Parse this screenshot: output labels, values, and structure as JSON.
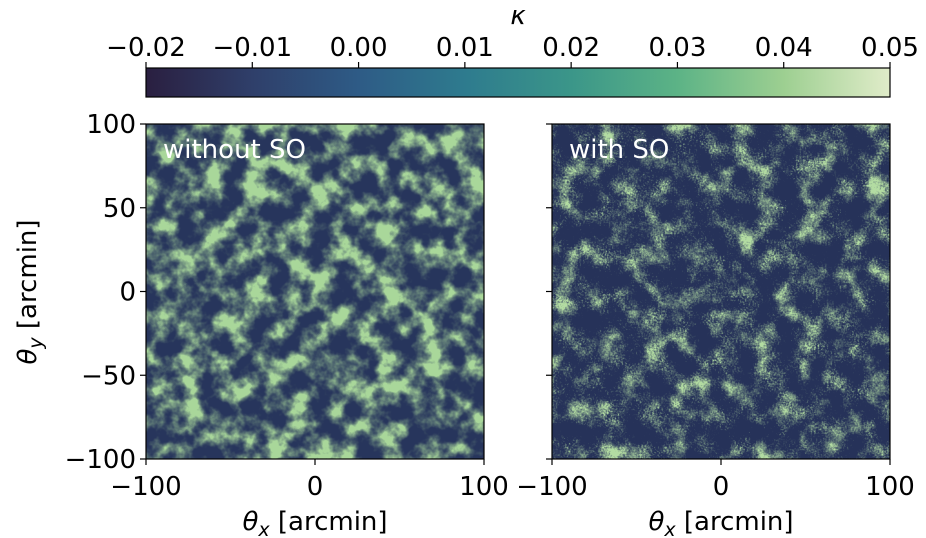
{
  "chart_data": {
    "type": "heatmap",
    "colorbar": {
      "label": "κ",
      "ticks": [
        "−0.02",
        "−0.01",
        "0.00",
        "0.01",
        "0.02",
        "0.03",
        "0.04",
        "0.05"
      ],
      "range": [
        -0.02,
        0.05
      ],
      "colormap": [
        "#2a1f40",
        "#2f3f6a",
        "#2e5b86",
        "#2e7b8e",
        "#3b9689",
        "#5cb386",
        "#9dcf91",
        "#e0ecc9"
      ],
      "position": "top"
    },
    "panels": [
      {
        "label": "without SO",
        "xlabel": "θx [arcmin]",
        "ylabel": "θy [arcmin]",
        "xlim": [
          -100,
          100
        ],
        "ylim": [
          -100,
          100
        ],
        "xticks": [
          "−100",
          "0",
          "100"
        ],
        "yticks": [
          "100",
          "50",
          "0",
          "−50",
          "−100"
        ],
        "smoothing": "smooth"
      },
      {
        "label": "with SO",
        "xlabel": "θx [arcmin]",
        "ylabel": "",
        "xlim": [
          -100,
          100
        ],
        "ylim": [
          -100,
          100
        ],
        "xticks": [
          "−100",
          "0",
          "100"
        ],
        "yticks": [],
        "smoothing": "noisy"
      }
    ]
  }
}
